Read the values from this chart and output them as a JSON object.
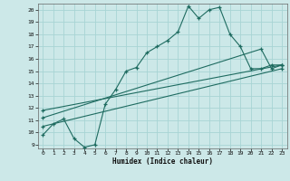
{
  "xlabel": "Humidex (Indice chaleur)",
  "background_color": "#cce8e8",
  "line_color": "#1e6b60",
  "grid_color": "#a8d4d4",
  "xlim": [
    -0.5,
    23.5
  ],
  "ylim": [
    8.7,
    20.5
  ],
  "xticks": [
    0,
    1,
    2,
    3,
    4,
    5,
    6,
    7,
    8,
    9,
    10,
    11,
    12,
    13,
    14,
    15,
    16,
    17,
    18,
    19,
    20,
    21,
    22,
    23
  ],
  "yticks": [
    9,
    10,
    11,
    12,
    13,
    14,
    15,
    16,
    17,
    18,
    19,
    20
  ],
  "series1_x": [
    0,
    1,
    2,
    3,
    4,
    5,
    6,
    7,
    8,
    9,
    10,
    11,
    12,
    13,
    14,
    15,
    16,
    17,
    18,
    19,
    20,
    21,
    22,
    23
  ],
  "series1_y": [
    9.8,
    10.7,
    11.1,
    9.5,
    8.8,
    9.0,
    12.3,
    13.5,
    15.0,
    15.3,
    16.5,
    17.0,
    17.5,
    18.2,
    20.3,
    19.3,
    20.0,
    20.2,
    18.0,
    17.0,
    15.2,
    15.2,
    15.5,
    15.5
  ],
  "series2_x": [
    0,
    21,
    22,
    23
  ],
  "series2_y": [
    11.2,
    16.8,
    15.2,
    15.5
  ],
  "series3_x": [
    0,
    23
  ],
  "series3_y": [
    11.8,
    15.5
  ],
  "series4_x": [
    0,
    23
  ],
  "series4_y": [
    10.5,
    15.2
  ]
}
